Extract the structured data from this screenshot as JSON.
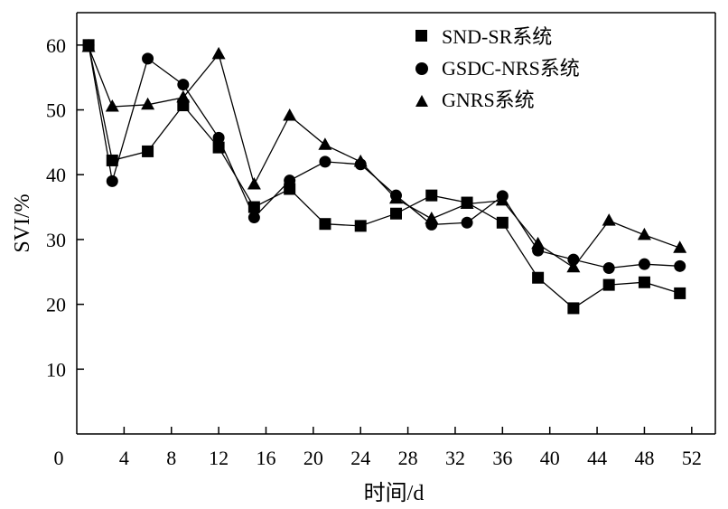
{
  "chart_data": {
    "type": "line",
    "title": "",
    "xlabel": "时间/d",
    "ylabel": "SVI/%",
    "xlim": [
      0,
      54
    ],
    "ylim": [
      0,
      65
    ],
    "x_ticks": [
      0,
      4,
      8,
      12,
      16,
      20,
      24,
      28,
      32,
      36,
      40,
      44,
      48,
      52
    ],
    "y_ticks": [
      10,
      20,
      30,
      40,
      50,
      60
    ],
    "x_tick_labels": [
      "0",
      "4",
      "8",
      "12",
      "16",
      "20",
      "24",
      "28",
      "32",
      "36",
      "40",
      "44",
      "48",
      "52"
    ],
    "y_tick_labels": [
      "10",
      "20",
      "30",
      "40",
      "50",
      "60"
    ],
    "legend_position": "top-right",
    "series": [
      {
        "name": "SND-SR系统",
        "marker": "square",
        "x": [
          1,
          3,
          6,
          9,
          12,
          15,
          18,
          21,
          24,
          27,
          30,
          33,
          36,
          39,
          42,
          45,
          48,
          51
        ],
        "values": [
          60,
          42.2,
          43.6,
          50.7,
          44.2,
          35,
          37.8,
          32.4,
          32.1,
          34,
          36.8,
          35.7,
          32.6,
          24.1,
          19.4,
          23,
          23.4,
          21.7
        ]
      },
      {
        "name": "GSDC-NRS系统",
        "marker": "circle",
        "x": [
          1,
          3,
          6,
          9,
          12,
          15,
          18,
          21,
          24,
          27,
          30,
          33,
          36,
          39,
          42,
          45,
          48,
          51
        ],
        "values": [
          60,
          39,
          57.9,
          53.9,
          45.7,
          33.4,
          39.1,
          42,
          41.6,
          36.8,
          32.3,
          32.6,
          36.7,
          28.3,
          26.9,
          25.6,
          26.2,
          25.9
        ]
      },
      {
        "name": "GNRS系统",
        "marker": "triangle",
        "x": [
          1,
          3,
          6,
          9,
          12,
          15,
          18,
          21,
          24,
          27,
          30,
          33,
          36,
          39,
          42,
          45,
          48,
          51
        ],
        "values": [
          59.7,
          50.5,
          50.8,
          51.9,
          58.6,
          38.5,
          49.1,
          44.6,
          42,
          36.3,
          33.2,
          35.5,
          36,
          29.3,
          25.7,
          32.9,
          30.7,
          28.7
        ]
      }
    ]
  }
}
